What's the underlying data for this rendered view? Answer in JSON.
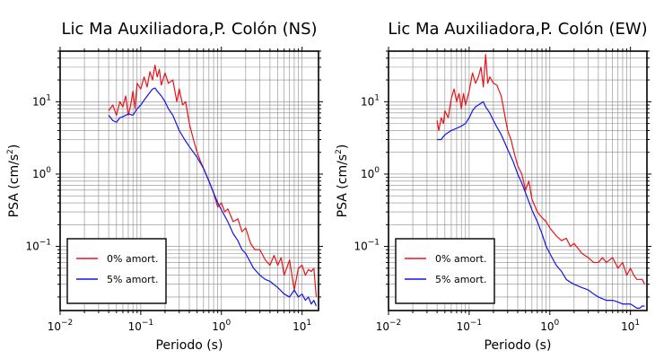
{
  "chart_data": [
    {
      "type": "line",
      "title": "Lic Ma Auxiliadora,P. Colón (NS)",
      "xlabel": "Periodo (s)",
      "ylabel": {
        "pre": "PSA (cm/s",
        "sup": "2",
        "post": ")"
      },
      "x_scale": "log",
      "y_scale": "log",
      "xlim": [
        0.01,
        16
      ],
      "ylim": [
        0.013,
        50
      ],
      "grid": true,
      "legend_position": "bottom-left",
      "x_ticks": [
        {
          "value": 0.01,
          "base": "10",
          "exp": "−2"
        },
        {
          "value": 0.1,
          "base": "10",
          "exp": "−1"
        },
        {
          "value": 1,
          "base": "10",
          "exp": "0"
        },
        {
          "value": 10,
          "base": "10",
          "exp": "1"
        }
      ],
      "y_ticks": [
        {
          "value": 0.1,
          "base": "10",
          "exp": "−1"
        },
        {
          "value": 1,
          "base": "10",
          "exp": "0"
        },
        {
          "value": 10,
          "base": "10",
          "exp": "1"
        }
      ],
      "series": [
        {
          "name": "0% amort.",
          "color": "#e8141a",
          "x": [
            0.04,
            0.045,
            0.05,
            0.055,
            0.06,
            0.065,
            0.07,
            0.075,
            0.08,
            0.085,
            0.09,
            0.1,
            0.11,
            0.12,
            0.13,
            0.14,
            0.15,
            0.16,
            0.17,
            0.18,
            0.2,
            0.22,
            0.25,
            0.28,
            0.3,
            0.33,
            0.36,
            0.4,
            0.45,
            0.5,
            0.55,
            0.6,
            0.7,
            0.8,
            0.9,
            1.0,
            1.1,
            1.2,
            1.4,
            1.6,
            1.8,
            2.0,
            2.3,
            2.6,
            3.0,
            3.5,
            4.0,
            4.5,
            5.0,
            5.5,
            6.0,
            7.0,
            8.0,
            9.0,
            10.0,
            11.0,
            12.0,
            13.0,
            14.0,
            15.0
          ],
          "y": [
            7.5,
            9.0,
            6.5,
            10.0,
            8.5,
            12.0,
            6.5,
            9.0,
            14.0,
            8.0,
            18.0,
            15.0,
            22.0,
            16.0,
            26.0,
            20.0,
            32.0,
            22.0,
            28.0,
            17.0,
            25.0,
            18.0,
            20.0,
            10.0,
            15.0,
            9.0,
            10.0,
            5.0,
            3.0,
            2.0,
            1.5,
            1.2,
            0.8,
            0.55,
            0.35,
            0.4,
            0.3,
            0.33,
            0.22,
            0.24,
            0.16,
            0.18,
            0.11,
            0.09,
            0.09,
            0.065,
            0.055,
            0.075,
            0.055,
            0.07,
            0.04,
            0.065,
            0.025,
            0.05,
            0.055,
            0.04,
            0.048,
            0.045,
            0.05,
            0.02
          ]
        },
        {
          "name": "5% amort.",
          "color": "#1414e6",
          "x": [
            0.04,
            0.045,
            0.05,
            0.055,
            0.06,
            0.07,
            0.08,
            0.09,
            0.1,
            0.11,
            0.12,
            0.13,
            0.14,
            0.15,
            0.16,
            0.18,
            0.2,
            0.22,
            0.25,
            0.3,
            0.35,
            0.4,
            0.45,
            0.5,
            0.6,
            0.7,
            0.8,
            0.9,
            1.0,
            1.2,
            1.4,
            1.6,
            1.8,
            2.0,
            2.5,
            3.0,
            3.5,
            4.0,
            5.0,
            6.0,
            7.0,
            8.0,
            9.0,
            10.0,
            11.0,
            12.0,
            13.0,
            14.0,
            15.0
          ],
          "y": [
            6.5,
            5.5,
            5.2,
            6.0,
            6.2,
            6.8,
            6.5,
            8.0,
            9.0,
            10.5,
            12.0,
            13.5,
            15.0,
            15.5,
            14.0,
            12.0,
            10.0,
            8.0,
            6.5,
            4.0,
            3.0,
            2.4,
            2.0,
            1.7,
            1.2,
            0.8,
            0.55,
            0.4,
            0.32,
            0.22,
            0.15,
            0.12,
            0.09,
            0.08,
            0.05,
            0.04,
            0.035,
            0.033,
            0.027,
            0.022,
            0.02,
            0.025,
            0.02,
            0.022,
            0.018,
            0.02,
            0.016,
            0.018,
            0.015
          ]
        }
      ]
    },
    {
      "type": "line",
      "title": "Lic Ma Auxiliadora,P. Colón (EW)",
      "xlabel": "Periodo (s)",
      "ylabel": {
        "pre": "PSA (cm/s",
        "sup": "2",
        "post": ")"
      },
      "x_scale": "log",
      "y_scale": "log",
      "xlim": [
        0.01,
        16
      ],
      "ylim": [
        0.013,
        50
      ],
      "grid": true,
      "legend_position": "bottom-left",
      "x_ticks": [
        {
          "value": 0.01,
          "base": "10",
          "exp": "−2"
        },
        {
          "value": 0.1,
          "base": "10",
          "exp": "−1"
        },
        {
          "value": 1,
          "base": "10",
          "exp": "0"
        },
        {
          "value": 10,
          "base": "10",
          "exp": "1"
        }
      ],
      "y_ticks": [
        {
          "value": 0.1,
          "base": "10",
          "exp": "−1"
        },
        {
          "value": 1,
          "base": "10",
          "exp": "0"
        },
        {
          "value": 10,
          "base": "10",
          "exp": "1"
        }
      ],
      "series": [
        {
          "name": "0% amort.",
          "color": "#e8141a",
          "x": [
            0.04,
            0.042,
            0.045,
            0.048,
            0.05,
            0.055,
            0.06,
            0.065,
            0.07,
            0.075,
            0.08,
            0.085,
            0.09,
            0.1,
            0.11,
            0.12,
            0.13,
            0.14,
            0.15,
            0.16,
            0.17,
            0.18,
            0.2,
            0.22,
            0.25,
            0.28,
            0.3,
            0.33,
            0.36,
            0.4,
            0.45,
            0.5,
            0.55,
            0.6,
            0.7,
            0.8,
            0.9,
            1.0,
            1.2,
            1.4,
            1.6,
            1.8,
            2.0,
            2.5,
            3.0,
            3.5,
            4.0,
            4.5,
            5.0,
            6.0,
            7.0,
            8.0,
            9.0,
            10.0,
            11.0,
            12.0,
            14.0,
            15.0
          ],
          "y": [
            5.5,
            4.0,
            6.0,
            5.0,
            7.5,
            6.0,
            11.0,
            15.0,
            10.0,
            13.0,
            8.0,
            13.0,
            9.0,
            14.0,
            25.0,
            18.0,
            22.0,
            30.0,
            16.0,
            45.0,
            18.0,
            22.0,
            18.0,
            17.0,
            12.0,
            6.0,
            4.0,
            3.0,
            2.0,
            1.3,
            1.0,
            0.6,
            0.8,
            0.45,
            0.3,
            0.25,
            0.22,
            0.18,
            0.14,
            0.12,
            0.13,
            0.1,
            0.11,
            0.08,
            0.07,
            0.06,
            0.06,
            0.07,
            0.06,
            0.07,
            0.05,
            0.06,
            0.04,
            0.05,
            0.04,
            0.035,
            0.035,
            0.03
          ]
        },
        {
          "name": "5% amort.",
          "color": "#1414e6",
          "x": [
            0.04,
            0.045,
            0.05,
            0.06,
            0.07,
            0.08,
            0.09,
            0.1,
            0.11,
            0.12,
            0.13,
            0.14,
            0.15,
            0.16,
            0.18,
            0.2,
            0.22,
            0.25,
            0.3,
            0.35,
            0.4,
            0.45,
            0.5,
            0.6,
            0.7,
            0.8,
            0.9,
            1.0,
            1.2,
            1.4,
            1.6,
            1.8,
            2.0,
            2.5,
            3.0,
            3.5,
            4.0,
            5.0,
            6.0,
            7.0,
            8.0,
            9.0,
            10.0,
            11.0,
            12.0,
            13.0,
            14.0,
            15.0
          ],
          "y": [
            3.0,
            3.0,
            3.5,
            4.0,
            4.3,
            4.6,
            5.0,
            6.0,
            7.5,
            8.5,
            9.0,
            9.5,
            10.0,
            8.5,
            7.0,
            5.5,
            4.5,
            3.5,
            2.2,
            1.5,
            1.0,
            0.75,
            0.55,
            0.32,
            0.22,
            0.15,
            0.1,
            0.08,
            0.055,
            0.045,
            0.035,
            0.032,
            0.03,
            0.027,
            0.025,
            0.022,
            0.02,
            0.018,
            0.018,
            0.017,
            0.016,
            0.016,
            0.016,
            0.015,
            0.014,
            0.014,
            0.015,
            0.015
          ]
        }
      ]
    }
  ]
}
